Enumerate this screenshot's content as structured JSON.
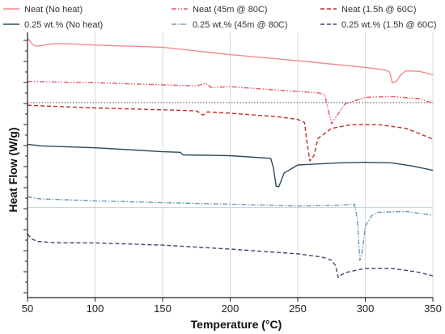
{
  "chart_data": {
    "type": "line",
    "title": "",
    "xlabel": "Temperature (°C)",
    "ylabel": "Heat Flow (W/g)",
    "xlim": [
      50,
      350
    ],
    "xticks": [
      50,
      100,
      150,
      200,
      250,
      300,
      350
    ],
    "ylim": [
      0,
      1
    ],
    "y_tick_labels_shown": false,
    "grid": {
      "x_vertical_lines": true,
      "y_horizontal_lines": false
    },
    "legend_position": "top",
    "reference_lines": [
      {
        "y": 0.735,
        "style": "dotted",
        "color": "#555555"
      },
      {
        "y": 0.34,
        "style": "solid",
        "color": "#c8d8d8"
      }
    ],
    "series": [
      {
        "name": "Neat (No heat)",
        "color": "#f08c8c",
        "dash": "solid",
        "x": [
          50,
          53,
          56,
          60,
          65,
          70,
          80,
          100,
          150,
          200,
          250,
          300,
          315,
          318,
          320,
          323,
          326,
          330,
          340,
          350
        ],
        "y": [
          0.98,
          0.958,
          0.948,
          0.95,
          0.955,
          0.957,
          0.957,
          0.952,
          0.944,
          0.916,
          0.893,
          0.868,
          0.858,
          0.85,
          0.81,
          0.815,
          0.838,
          0.855,
          0.853,
          0.84
        ]
      },
      {
        "name": "Neat (45m @ 80C)",
        "color": "#e05a6a",
        "dash": "dashdotdot",
        "x": [
          50,
          100,
          150,
          175,
          182,
          186,
          200,
          250,
          265,
          270,
          272,
          275,
          278,
          285,
          300,
          320,
          340,
          350
        ],
        "y": [
          0.815,
          0.81,
          0.802,
          0.798,
          0.808,
          0.792,
          0.795,
          0.777,
          0.772,
          0.766,
          0.72,
          0.655,
          0.68,
          0.73,
          0.755,
          0.758,
          0.75,
          0.733
        ]
      },
      {
        "name": "Neat (1.5h @ 60C)",
        "color": "#c02a2a",
        "dash": "dashed",
        "x": [
          50,
          100,
          150,
          175,
          180,
          183,
          200,
          235,
          250,
          255,
          257,
          259,
          262,
          265,
          275,
          290,
          310,
          330,
          350
        ],
        "y": [
          0.725,
          0.715,
          0.708,
          0.704,
          0.688,
          0.7,
          0.695,
          0.682,
          0.672,
          0.66,
          0.58,
          0.515,
          0.535,
          0.6,
          0.638,
          0.652,
          0.652,
          0.638,
          0.598
        ]
      },
      {
        "name": "0.25 wt.% (No heat)",
        "color": "#2a4a5e",
        "dash": "solid",
        "x": [
          50,
          60,
          100,
          150,
          163,
          165,
          200,
          230,
          232,
          234,
          236,
          240,
          250,
          280,
          300,
          320,
          335,
          350
        ],
        "y": [
          0.578,
          0.572,
          0.565,
          0.55,
          0.548,
          0.538,
          0.535,
          0.525,
          0.49,
          0.42,
          0.418,
          0.47,
          0.5,
          0.508,
          0.51,
          0.508,
          0.496,
          0.48
        ]
      },
      {
        "name": "0.25 wt.% (45m @ 80C)",
        "color": "#6a9ab8",
        "dash": "dashdot",
        "x": [
          50,
          60,
          100,
          150,
          200,
          250,
          280,
          292,
          294,
          296,
          298,
          300,
          305,
          310,
          330,
          350
        ],
        "y": [
          0.38,
          0.372,
          0.365,
          0.358,
          0.352,
          0.345,
          0.348,
          0.352,
          0.3,
          0.14,
          0.18,
          0.27,
          0.31,
          0.322,
          0.325,
          0.31
        ]
      },
      {
        "name": "0.25 wt.% (1.5h @ 60C)",
        "color": "#3a4a6a",
        "dash": "dashed",
        "x": [
          50,
          53,
          57,
          70,
          100,
          150,
          200,
          250,
          265,
          270,
          275,
          278,
          280,
          282,
          286,
          300,
          320,
          340,
          350
        ],
        "y": [
          0.24,
          0.222,
          0.212,
          0.207,
          0.206,
          0.198,
          0.183,
          0.165,
          0.155,
          0.15,
          0.141,
          0.12,
          0.075,
          0.085,
          0.095,
          0.11,
          0.11,
          0.095,
          0.082
        ]
      }
    ]
  }
}
